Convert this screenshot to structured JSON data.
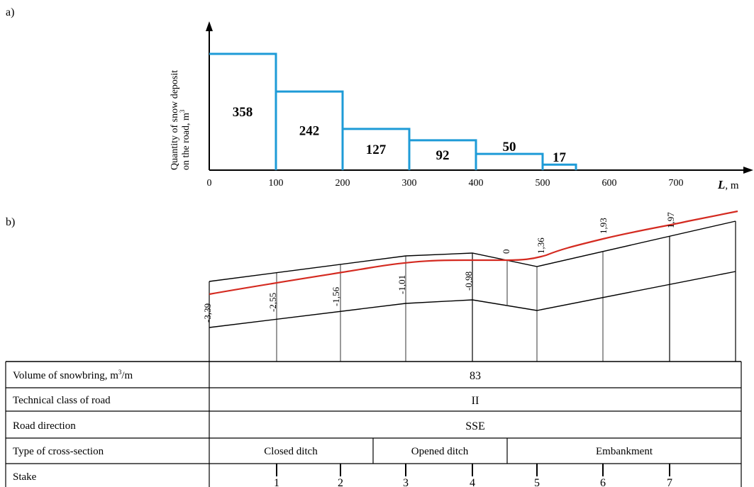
{
  "panel_a": {
    "label": "a)",
    "y_axis_label_line1": "Quantity of snow deposit",
    "y_axis_label_line2": "on the road, m",
    "y_axis_label_sup": "3",
    "x_axis_label": "L",
    "x_axis_unit": ", m",
    "colors": {
      "bars": "#1e9bd7",
      "axis": "#000000"
    }
  },
  "panel_b": {
    "label": "b)",
    "profile_values": [
      "-3,39",
      "-2,55",
      "-1,56",
      "-1,01",
      "-0,98",
      "0",
      "1,36",
      "1,93",
      "1,97"
    ],
    "colors": {
      "snow_line": "#d42a20",
      "road": "#000000"
    }
  },
  "chart_data": {
    "type": "bar",
    "categories": [
      "0-100",
      "100-200",
      "200-300",
      "300-400",
      "400-500",
      "500-550"
    ],
    "x_edges": [
      0,
      100,
      200,
      300,
      400,
      500,
      550
    ],
    "values": [
      358,
      242,
      127,
      92,
      50,
      17
    ],
    "x_ticks": [
      "0",
      "100",
      "200",
      "300",
      "400",
      "500",
      "600",
      "700"
    ],
    "xlim": [
      0,
      800
    ],
    "ylim": [
      0,
      420
    ],
    "xlabel": "L, m",
    "ylabel": "Quantity of snow deposit on the road, m3",
    "grid": false
  },
  "table": {
    "rows": [
      {
        "label": "Volume of snowbring, m",
        "sup": "3",
        "suffix": "/m",
        "value": "83"
      },
      {
        "label": "Technical class of road",
        "value": "II"
      },
      {
        "label": "Road direction",
        "value": "SSE"
      }
    ],
    "cross_section": {
      "label": "Type of cross-section",
      "closed": "Closed ditch",
      "opened": "Opened ditch",
      "embankment": "Embankment"
    },
    "stake": {
      "label": "Stake",
      "numbers": [
        "1",
        "2",
        "3",
        "4",
        "5",
        "6",
        "7"
      ]
    }
  }
}
